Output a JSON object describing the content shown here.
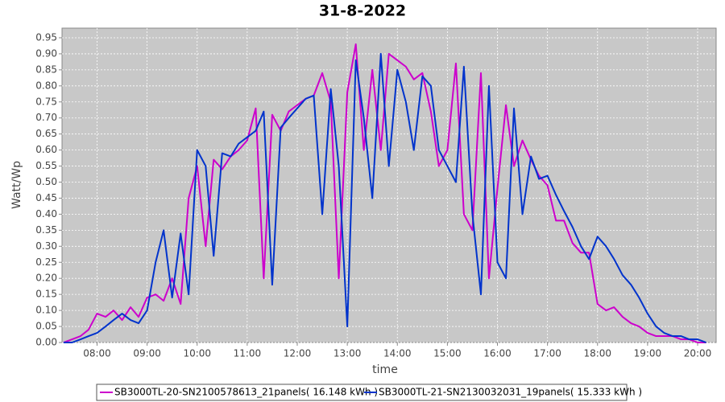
{
  "chart_data": {
    "type": "line",
    "title": "31-8-2022",
    "x_label": "time",
    "y_label": "Watt/Wp",
    "x": [
      7.33,
      7.5,
      7.67,
      7.83,
      8,
      8.17,
      8.33,
      8.5,
      8.67,
      8.83,
      9,
      9.17,
      9.33,
      9.5,
      9.67,
      9.83,
      10,
      10.17,
      10.33,
      10.5,
      10.67,
      10.83,
      11,
      11.17,
      11.33,
      11.5,
      11.67,
      11.83,
      12,
      12.17,
      12.33,
      12.5,
      12.67,
      12.83,
      13,
      13.17,
      13.33,
      13.5,
      13.67,
      13.83,
      14,
      14.17,
      14.33,
      14.5,
      14.67,
      14.83,
      15,
      15.17,
      15.33,
      15.5,
      15.67,
      15.83,
      16,
      16.17,
      16.33,
      16.5,
      16.67,
      16.83,
      17,
      17.17,
      17.33,
      17.5,
      17.67,
      17.83,
      18,
      18.17,
      18.33,
      18.5,
      18.67,
      18.83,
      19,
      19.17,
      19.33,
      19.5,
      19.67,
      19.83,
      20,
      20.17
    ],
    "series": [
      {
        "name": "SB3000TL-20-SN2100578613_21panels( 16.148 kWh )",
        "color": "#cc00cc",
        "values": [
          0.0,
          0.01,
          0.02,
          0.04,
          0.09,
          0.08,
          0.1,
          0.07,
          0.11,
          0.08,
          0.14,
          0.15,
          0.13,
          0.2,
          0.12,
          0.45,
          0.55,
          0.3,
          0.57,
          0.54,
          0.58,
          0.6,
          0.63,
          0.73,
          0.2,
          0.71,
          0.66,
          0.72,
          0.74,
          0.76,
          0.77,
          0.84,
          0.75,
          0.2,
          0.78,
          0.93,
          0.6,
          0.85,
          0.6,
          0.9,
          0.88,
          0.86,
          0.82,
          0.84,
          0.72,
          0.55,
          0.6,
          0.87,
          0.4,
          0.35,
          0.84,
          0.2,
          0.48,
          0.74,
          0.55,
          0.63,
          0.57,
          0.52,
          0.49,
          0.38,
          0.38,
          0.31,
          0.28,
          0.28,
          0.12,
          0.1,
          0.11,
          0.08,
          0.06,
          0.05,
          0.03,
          0.02,
          0.02,
          0.02,
          0.01,
          0.01,
          0.0,
          0.0
        ]
      },
      {
        "name": "SB3000TL-21-SN2130032031_19panels( 15.333 kWh )",
        "color": "#0033cc",
        "values": [
          0.0,
          0.0,
          0.01,
          0.02,
          0.03,
          0.05,
          0.07,
          0.09,
          0.07,
          0.06,
          0.1,
          0.25,
          0.35,
          0.14,
          0.34,
          0.15,
          0.6,
          0.55,
          0.27,
          0.59,
          0.58,
          0.62,
          0.64,
          0.66,
          0.72,
          0.18,
          0.67,
          0.7,
          0.73,
          0.76,
          0.77,
          0.4,
          0.79,
          0.55,
          0.05,
          0.88,
          0.7,
          0.45,
          0.9,
          0.55,
          0.85,
          0.75,
          0.6,
          0.83,
          0.8,
          0.6,
          0.55,
          0.5,
          0.86,
          0.4,
          0.15,
          0.8,
          0.25,
          0.2,
          0.73,
          0.4,
          0.58,
          0.51,
          0.52,
          0.46,
          0.41,
          0.36,
          0.3,
          0.26,
          0.33,
          0.3,
          0.26,
          0.21,
          0.18,
          0.14,
          0.09,
          0.05,
          0.03,
          0.02,
          0.02,
          0.01,
          0.01,
          0.0
        ]
      }
    ],
    "xlim": [
      7.3,
      20.37
    ],
    "ylim": [
      0,
      0.98
    ],
    "xticks": [
      {
        "value": 8,
        "label": "08:00"
      },
      {
        "value": 9,
        "label": "09:00"
      },
      {
        "value": 10,
        "label": "10:00"
      },
      {
        "value": 11,
        "label": "11:00"
      },
      {
        "value": 12,
        "label": "12:00"
      },
      {
        "value": 13,
        "label": "13:00"
      },
      {
        "value": 14,
        "label": "14:00"
      },
      {
        "value": 15,
        "label": "15:00"
      },
      {
        "value": 16,
        "label": "16:00"
      },
      {
        "value": 17,
        "label": "17:00"
      },
      {
        "value": 18,
        "label": "18:00"
      },
      {
        "value": 19,
        "label": "19:00"
      },
      {
        "value": 20,
        "label": "20:00"
      }
    ],
    "yticks": [
      {
        "value": 0,
        "label": "0.00"
      },
      {
        "value": 0.05,
        "label": "0.05"
      },
      {
        "value": 0.1,
        "label": "0.10"
      },
      {
        "value": 0.15,
        "label": "0.15"
      },
      {
        "value": 0.2,
        "label": "0.20"
      },
      {
        "value": 0.25,
        "label": "0.25"
      },
      {
        "value": 0.3,
        "label": "0.30"
      },
      {
        "value": 0.35,
        "label": "0.35"
      },
      {
        "value": 0.4,
        "label": "0.40"
      },
      {
        "value": 0.45,
        "label": "0.45"
      },
      {
        "value": 0.5,
        "label": "0.50"
      },
      {
        "value": 0.55,
        "label": "0.55"
      },
      {
        "value": 0.6,
        "label": "0.60"
      },
      {
        "value": 0.65,
        "label": "0.65"
      },
      {
        "value": 0.7,
        "label": "0.70"
      },
      {
        "value": 0.75,
        "label": "0.75"
      },
      {
        "value": 0.8,
        "label": "0.80"
      },
      {
        "value": 0.85,
        "label": "0.85"
      },
      {
        "value": 0.9,
        "label": "0.90"
      },
      {
        "value": 0.95,
        "label": "0.95"
      }
    ],
    "grid": true,
    "legend": "bottom"
  }
}
